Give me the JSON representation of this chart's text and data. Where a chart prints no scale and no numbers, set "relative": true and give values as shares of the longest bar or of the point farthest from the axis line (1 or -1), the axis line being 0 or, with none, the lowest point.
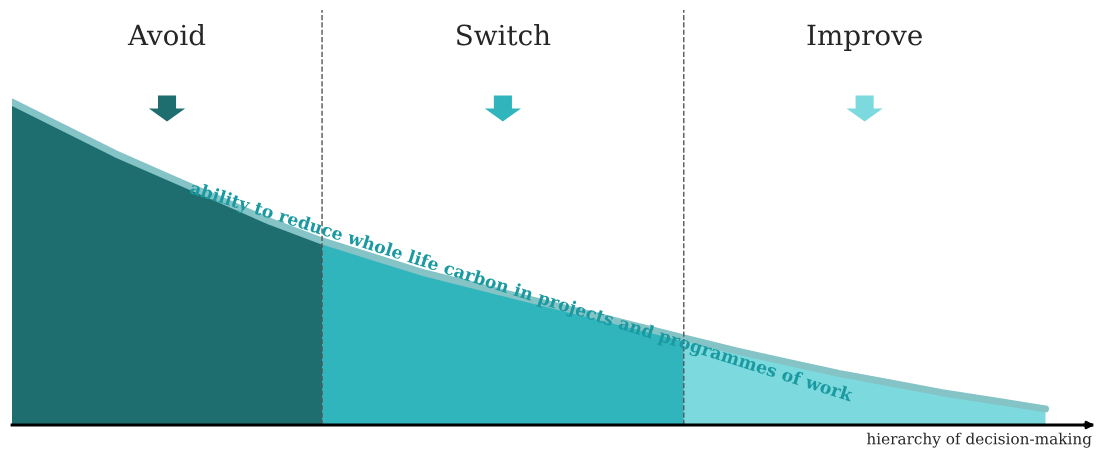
{
  "chart_data": {
    "type": "area",
    "relative": true,
    "xlabel": "hierarchy of decision-making",
    "categories": [
      null,
      null,
      null,
      null,
      null,
      null,
      null,
      null,
      null,
      null,
      null,
      null,
      null,
      null,
      null,
      null,
      null,
      null,
      null,
      null,
      null
    ],
    "series": [
      {
        "color": "#1f6e6f",
        "values": [
          1.0,
          0.92,
          0.84,
          0.77,
          0.7,
          0.63,
          0.57,
          null,
          null,
          null,
          null,
          null,
          null,
          null,
          null,
          null,
          null,
          null,
          null,
          null,
          null
        ]
      },
      {
        "color": "#31b5bd",
        "values": [
          null,
          null,
          null,
          null,
          null,
          null,
          0.57,
          0.52,
          0.47,
          0.43,
          0.39,
          0.35,
          0.31,
          0.27,
          null,
          null,
          null,
          null,
          null,
          null,
          null
        ]
      },
      {
        "color": "#7cd9dd",
        "values": [
          null,
          null,
          null,
          null,
          null,
          null,
          null,
          null,
          null,
          null,
          null,
          null,
          null,
          0.27,
          0.23,
          0.195,
          0.16,
          0.13,
          0.1,
          0.075,
          0.05
        ]
      },
      {
        "type": "line",
        "color": "#84c3c6",
        "values": [
          1.0,
          0.92,
          0.84,
          0.77,
          0.7,
          0.63,
          0.57,
          0.52,
          0.47,
          0.43,
          0.39,
          0.35,
          0.31,
          0.27,
          0.23,
          0.195,
          0.16,
          0.13,
          0.1,
          0.075,
          0.05
        ]
      }
    ],
    "annotations": [
      "Avoid",
      "Switch",
      "Improve",
      "ability to reduce whole life carbon in projects and programmes of work"
    ],
    "grid": false,
    "legend": false
  }
}
